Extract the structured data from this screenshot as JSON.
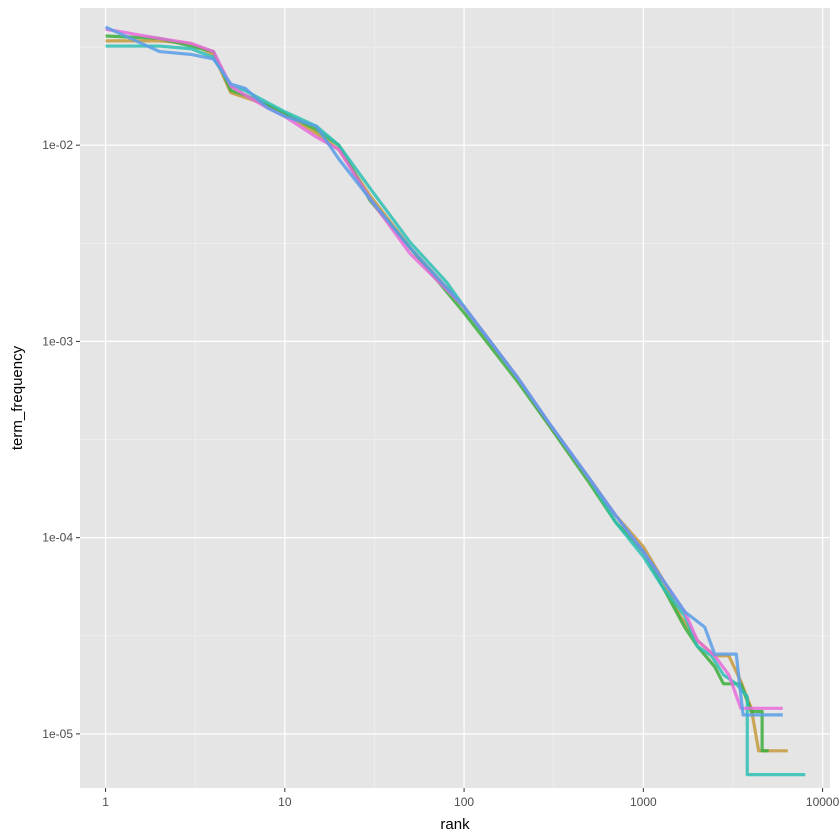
{
  "chart_data": {
    "type": "line",
    "title": "",
    "xlabel": "rank",
    "ylabel": "term_frequency",
    "x_scale": "log10",
    "y_scale": "log10",
    "xlim": [
      0.72,
      11000
    ],
    "ylim": [
      5.3e-06,
      0.05
    ],
    "x_ticks": [
      1,
      10,
      100,
      1000,
      10000
    ],
    "x_tick_labels": [
      "1",
      "10",
      "100",
      "1000",
      "10000"
    ],
    "x_minor_ticks": [
      3.162,
      31.62,
      316.2,
      3162
    ],
    "y_ticks": [
      1e-05,
      0.0001,
      0.001,
      0.01
    ],
    "y_tick_labels": [
      "1e-05",
      "1e-04",
      "1e-03",
      "1e-02"
    ],
    "y_minor_ticks": [
      3.16e-05,
      0.000316,
      0.00316,
      0.0316
    ],
    "grid": true,
    "legend": "none",
    "background": "#e5e5e5",
    "series": [
      {
        "color": "#c49a3c",
        "points": [
          [
            1,
            0.034
          ],
          [
            2,
            0.034
          ],
          [
            3,
            0.033
          ],
          [
            4,
            0.029
          ],
          [
            5,
            0.0185
          ],
          [
            6,
            0.0175
          ],
          [
            8,
            0.016
          ],
          [
            10,
            0.0145
          ],
          [
            15,
            0.0115
          ],
          [
            20,
            0.0095
          ],
          [
            30,
            0.0055
          ],
          [
            50,
            0.003
          ],
          [
            100,
            0.0015
          ],
          [
            200,
            0.00065
          ],
          [
            300,
            0.00037
          ],
          [
            500,
            0.0002
          ],
          [
            700,
            0.00013
          ],
          [
            1000,
            9e-05
          ],
          [
            1300,
            6e-05
          ],
          [
            1600,
            4e-05
          ],
          [
            2000,
            3e-05
          ],
          [
            2500,
            2.5e-05
          ],
          [
            3000,
            2.5e-05
          ],
          [
            3500,
            1.85e-05
          ],
          [
            4000,
            1.35e-05
          ],
          [
            4400,
            8.2e-06
          ],
          [
            6400,
            8.2e-06
          ]
        ]
      },
      {
        "color": "#3cae3c",
        "points": [
          [
            1,
            0.036
          ],
          [
            2,
            0.035
          ],
          [
            3,
            0.032
          ],
          [
            4,
            0.03
          ],
          [
            5,
            0.019
          ],
          [
            6,
            0.018
          ],
          [
            8,
            0.016
          ],
          [
            10,
            0.0145
          ],
          [
            15,
            0.012
          ],
          [
            20,
            0.01
          ],
          [
            30,
            0.0052
          ],
          [
            50,
            0.003
          ],
          [
            100,
            0.0014
          ],
          [
            200,
            0.00062
          ],
          [
            300,
            0.00037
          ],
          [
            500,
            0.00019
          ],
          [
            700,
            0.00012
          ],
          [
            1000,
            8.5e-05
          ],
          [
            1300,
            5.5e-05
          ],
          [
            1700,
            3.5e-05
          ],
          [
            2000,
            2.8e-05
          ],
          [
            2500,
            2.2e-05
          ],
          [
            2800,
            1.8e-05
          ],
          [
            3500,
            1.8e-05
          ],
          [
            4000,
            1.3e-05
          ],
          [
            4600,
            1.3e-05
          ],
          [
            4600,
            8.2e-06
          ],
          [
            5000,
            8.2e-06
          ]
        ]
      },
      {
        "color": "#2ebfb4",
        "points": [
          [
            1,
            0.032
          ],
          [
            2,
            0.032
          ],
          [
            3,
            0.031
          ],
          [
            4,
            0.028
          ],
          [
            5,
            0.02
          ],
          [
            6,
            0.019
          ],
          [
            8,
            0.0165
          ],
          [
            10,
            0.0148
          ],
          [
            15,
            0.0125
          ],
          [
            20,
            0.01
          ],
          [
            30,
            0.006
          ],
          [
            50,
            0.0032
          ],
          [
            80,
            0.002
          ],
          [
            100,
            0.0015
          ],
          [
            200,
            0.00065
          ],
          [
            300,
            0.00038
          ],
          [
            500,
            0.0002
          ],
          [
            700,
            0.00012
          ],
          [
            1000,
            8e-05
          ],
          [
            1300,
            5.5e-05
          ],
          [
            1700,
            4e-05
          ],
          [
            2000,
            2.8e-05
          ],
          [
            2400,
            2.5e-05
          ],
          [
            2800,
            2e-05
          ],
          [
            3300,
            1.8e-05
          ],
          [
            3800,
            1.55e-05
          ],
          [
            3800,
            6.2e-06
          ],
          [
            8000,
            6.2e-06
          ]
        ]
      },
      {
        "color": "#e86bdc",
        "points": [
          [
            1,
            0.039
          ],
          [
            2,
            0.035
          ],
          [
            3,
            0.033
          ],
          [
            4,
            0.03
          ],
          [
            5,
            0.02
          ],
          [
            6,
            0.018
          ],
          [
            8,
            0.0155
          ],
          [
            10,
            0.014
          ],
          [
            15,
            0.011
          ],
          [
            20,
            0.0095
          ],
          [
            30,
            0.0053
          ],
          [
            50,
            0.0028
          ],
          [
            100,
            0.0015
          ],
          [
            200,
            0.00065
          ],
          [
            300,
            0.00038
          ],
          [
            500,
            0.0002
          ],
          [
            700,
            0.00013
          ],
          [
            1000,
            8.5e-05
          ],
          [
            1300,
            6e-05
          ],
          [
            1700,
            4.2e-05
          ],
          [
            2000,
            3e-05
          ],
          [
            2500,
            2.5e-05
          ],
          [
            3000,
            2e-05
          ],
          [
            3500,
            1.35e-05
          ],
          [
            4000,
            1.35e-05
          ],
          [
            6000,
            1.35e-05
          ]
        ]
      },
      {
        "color": "#5a9ee8",
        "points": [
          [
            1,
            0.04
          ],
          [
            2,
            0.03
          ],
          [
            3,
            0.029
          ],
          [
            4,
            0.0275
          ],
          [
            5,
            0.0205
          ],
          [
            6,
            0.0195
          ],
          [
            8,
            0.0155
          ],
          [
            10,
            0.014
          ],
          [
            15,
            0.0125
          ],
          [
            20,
            0.0085
          ],
          [
            30,
            0.0053
          ],
          [
            50,
            0.003
          ],
          [
            100,
            0.0015
          ],
          [
            200,
            0.00065
          ],
          [
            300,
            0.00038
          ],
          [
            500,
            0.0002
          ],
          [
            700,
            0.00013
          ],
          [
            1000,
            8.5e-05
          ],
          [
            1300,
            6e-05
          ],
          [
            1700,
            4.2e-05
          ],
          [
            2200,
            3.5e-05
          ],
          [
            2500,
            2.55e-05
          ],
          [
            3300,
            2.55e-05
          ],
          [
            3600,
            1.25e-05
          ],
          [
            6000,
            1.25e-05
          ]
        ]
      }
    ]
  }
}
